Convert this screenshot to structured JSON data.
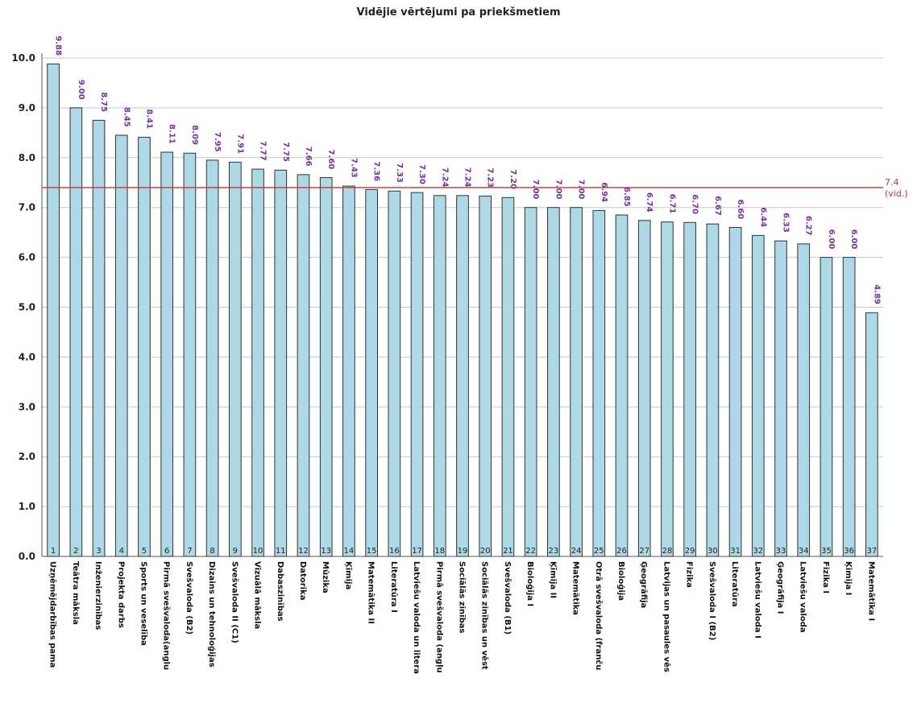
{
  "chart_data": {
    "type": "bar",
    "title": "Vidējie vērtējumi pa priekšmetiem",
    "xlabel": "",
    "ylabel": "",
    "ylim": [
      0,
      10
    ],
    "yticks": [
      "0.0",
      "1.0",
      "2.0",
      "3.0",
      "4.0",
      "5.0",
      "6.0",
      "7.0",
      "8.0",
      "9.0",
      "10.0"
    ],
    "grid": true,
    "bar_color": "#add8e6",
    "bar_stroke": "#333333",
    "value_label_color": "#7b2fa6",
    "average": {
      "value": 7.4,
      "label": "7.4",
      "sublabel": "(vid.)",
      "color": "#c0392b"
    },
    "indices": [
      "1",
      "2",
      "3",
      "4",
      "5",
      "6",
      "7",
      "8",
      "9",
      "10",
      "11",
      "12",
      "13",
      "14",
      "15",
      "16",
      "17",
      "18",
      "19",
      "20",
      "21",
      "22",
      "23",
      "24",
      "25",
      "26",
      "27",
      "28",
      "29",
      "30",
      "31",
      "32",
      "33",
      "34",
      "35",
      "36",
      "37"
    ],
    "categories": [
      "Uzņēmējdarbības pama",
      "Teātra māksla",
      "Inženierzinības",
      "Projekta darbs",
      "Sports un veselība",
      "Pirmā svešvaloda(anglu",
      "Svešvaloda (B2)",
      "Dizains un tehnoloģijas",
      "Svešvaloda II (C1)",
      "Vizuālā māksla",
      "Dabaszinības",
      "Datorika",
      "Mūzika",
      "Ķīmija",
      "Matemātika II",
      "Literatūra I",
      "Latviešu valoda un litera",
      "Pirmā svešvaloda (angļu",
      "Sociālās zinības",
      "Sociālās zinības un vēst",
      "Svešvaloda (B1)",
      "Bioloģija I",
      "Ķīmija II",
      "Matemātika",
      "Otrā svešvaloda (franču",
      "Bioloģija",
      "Ģeogrāfija",
      "Latvijas un pasaules vēs",
      "Fizika",
      "Svešvaloda I (B2)",
      "Literatūra",
      "Latviešu valoda I",
      "Ģeogrāfija I",
      "Latviešu valoda",
      "Fizika I",
      "Ķīmija I",
      "Matemātika I"
    ],
    "values": [
      9.88,
      9.0,
      8.75,
      8.45,
      8.41,
      8.11,
      8.09,
      7.95,
      7.91,
      7.77,
      7.75,
      7.66,
      7.6,
      7.43,
      7.36,
      7.33,
      7.3,
      7.24,
      7.24,
      7.23,
      7.2,
      7.0,
      7.0,
      7.0,
      6.94,
      6.85,
      6.74,
      6.71,
      6.7,
      6.67,
      6.6,
      6.44,
      6.33,
      6.27,
      6.0,
      6.0,
      4.89
    ],
    "value_labels": [
      "9.88",
      "9.00",
      "8.75",
      "8.45",
      "8.41",
      "8.11",
      "8.09",
      "7.95",
      "7.91",
      "7.77",
      "7.75",
      "7.66",
      "7.60",
      "7.43",
      "7.36",
      "7.33",
      "7.30",
      "7.24",
      "7.24",
      "7.23",
      "7.20",
      "7.00",
      "7.00",
      "7.00",
      "6.94",
      "6.85",
      "6.74",
      "6.71",
      "6.70",
      "6.67",
      "6.60",
      "6.44",
      "6.33",
      "6.27",
      "6.00",
      "6.00",
      "4.89"
    ]
  }
}
